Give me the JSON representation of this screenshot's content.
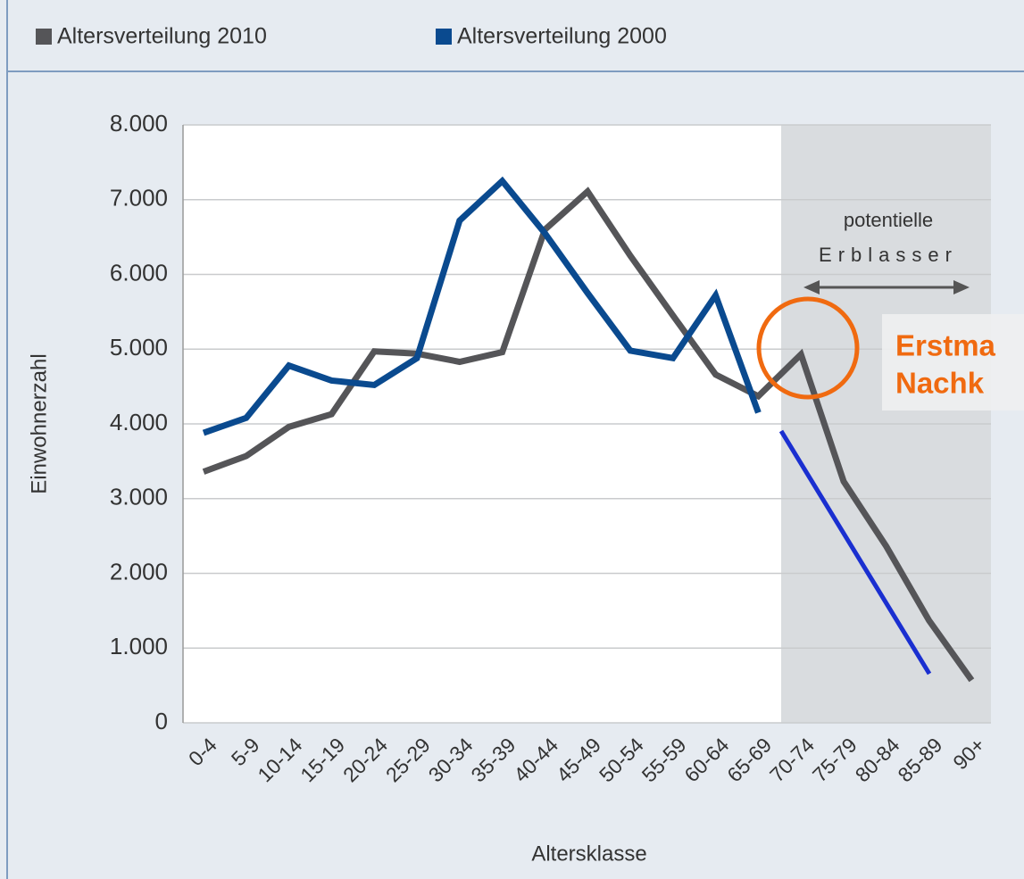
{
  "chart_data": {
    "type": "line",
    "categories": [
      "0-4",
      "5-9",
      "10-14",
      "15-19",
      "20-24",
      "25-29",
      "30-34",
      "35-39",
      "40-44",
      "45-49",
      "50-54",
      "55-59",
      "60-64",
      "65-69",
      "70-74",
      "75-79",
      "80-84",
      "85-89",
      "90+"
    ],
    "series": [
      {
        "name": "Altersverteilung 2010",
        "color": "#555558",
        "values": [
          3360,
          3570,
          3960,
          4130,
          4970,
          4940,
          4830,
          4960,
          6600,
          7110,
          6250,
          5450,
          4660,
          4370,
          4930,
          3230,
          2360,
          1370,
          570
        ]
      },
      {
        "name": "Altersverteilung 2000",
        "color": "#0a4a8f",
        "values": [
          3880,
          4080,
          4780,
          4580,
          4520,
          4880,
          6720,
          7250,
          6550,
          5750,
          4980,
          4880,
          5720,
          4150,
          null,
          null,
          null,
          null,
          null
        ]
      }
    ],
    "ylim": [
      0,
      8000
    ],
    "yticks": [
      0,
      {
        "value": 1000,
        "label": "1.000"
      },
      {
        "value": 2000,
        "label": "2.000"
      },
      {
        "value": 3000,
        "label": "3.000"
      },
      {
        "value": 4000,
        "label": "4.000"
      },
      {
        "value": 5000,
        "label": "5.000"
      },
      {
        "value": 6000,
        "label": "6.000"
      },
      {
        "value": 7000,
        "label": "7.000"
      },
      {
        "value": 8000,
        "label": "8.000"
      }
    ],
    "ylabel": "Einwohnerzahl",
    "xlabel": "Altersklasse",
    "grid": true,
    "annotations": [
      "potentielle",
      "Erblasser",
      "Erstma",
      "Nachk"
    ]
  }
}
